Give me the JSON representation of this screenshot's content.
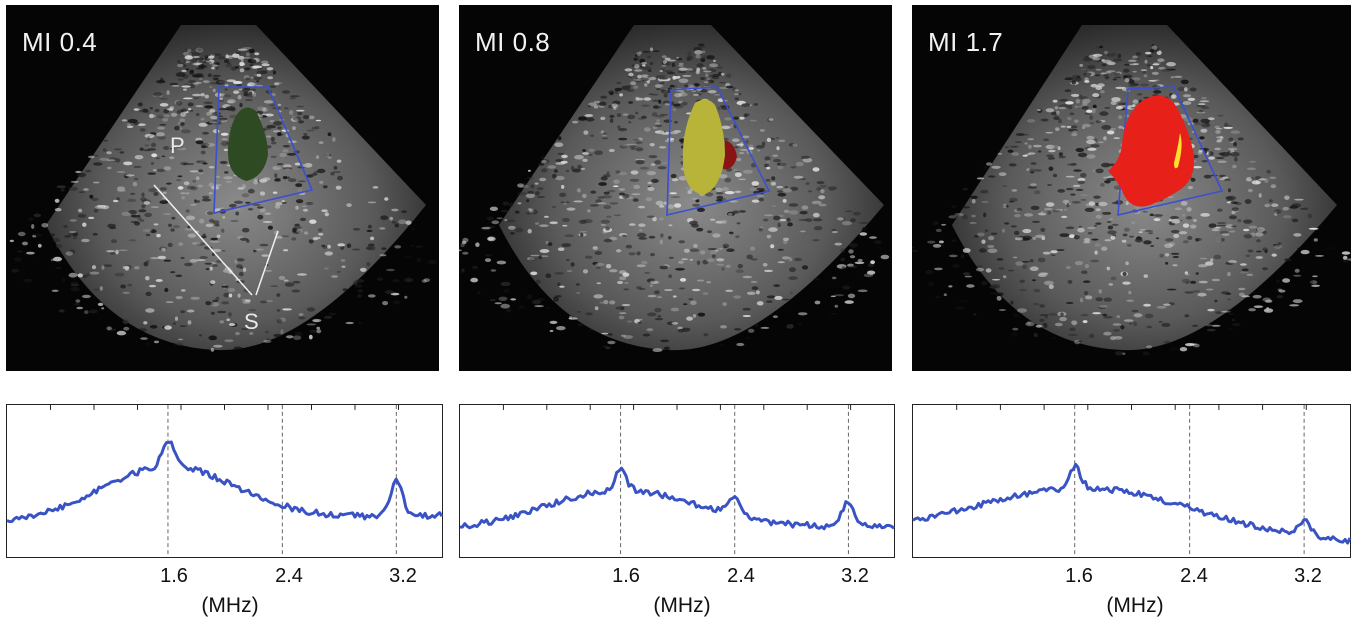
{
  "panels": [
    {
      "mi_label": "MI 0.4",
      "blob_color": "#2e4a22",
      "blob_highlight": "#4f7a32",
      "p_label": "P",
      "s_label": "S"
    },
    {
      "mi_label": "MI 0.8",
      "blob_color": "#b8b43a",
      "blob_highlight": "#d8d65a"
    },
    {
      "mi_label": "MI 1.7",
      "blob_color": "#e8201a",
      "blob_highlight": "#ffe030"
    }
  ],
  "spectra": [
    {
      "ticks": [
        "1.6",
        "2.4",
        "3.2"
      ],
      "unit": "(MHz)"
    },
    {
      "ticks": [
        "1.6",
        "2.4",
        "3.2"
      ],
      "unit": "(MHz)"
    },
    {
      "ticks": [
        "1.6",
        "2.4",
        "3.2"
      ],
      "unit": "(MHz)"
    }
  ],
  "colors": {
    "spectrum_line": "#3a53c4",
    "roi_box": "#3b4fd0",
    "guide_line": "#666666"
  }
}
